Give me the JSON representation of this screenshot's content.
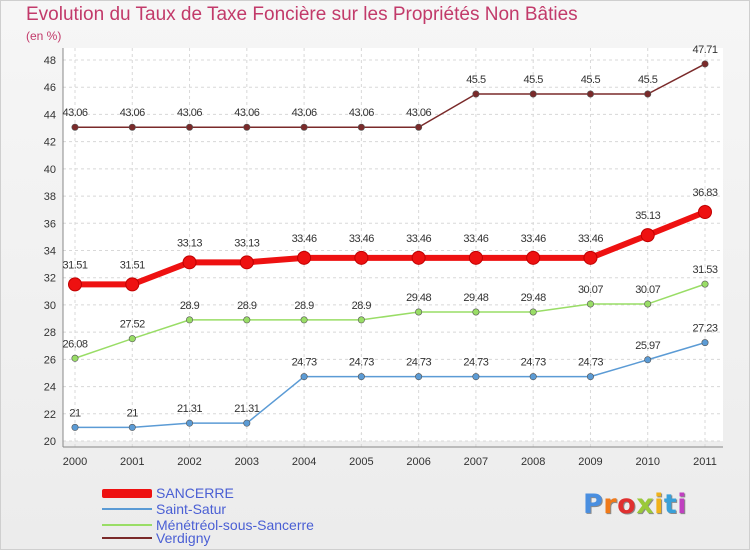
{
  "header": {
    "title": "Evolution du Taux de Taxe Foncière sur les Propriétés Non Bâties",
    "unit": "(en %)"
  },
  "logo": {
    "text": "Proxiti",
    "colors": [
      "#4a8fe0",
      "#f07a1a",
      "#e03030",
      "#9ac93a",
      "#f0b21a",
      "#3aa0d8",
      "#c040c0"
    ]
  },
  "chart_data": {
    "type": "line",
    "title": "Evolution du Taux de Taxe Foncière sur les Propriétés Non Bâties",
    "ylabel": "(en %)",
    "xlabel": "",
    "categories": [
      "2000",
      "2001",
      "2002",
      "2003",
      "2004",
      "2005",
      "2006",
      "2007",
      "2008",
      "2009",
      "2010",
      "2011"
    ],
    "ylim": [
      20,
      48
    ],
    "yticks": [
      20,
      22,
      24,
      26,
      28,
      30,
      32,
      34,
      36,
      38,
      40,
      42,
      44,
      46,
      48
    ],
    "grid": true,
    "series": [
      {
        "name": "SANCERRE",
        "color": "#ee1111",
        "values": [
          31.51,
          31.51,
          33.13,
          33.13,
          33.46,
          33.46,
          33.46,
          33.46,
          33.46,
          33.46,
          35.13,
          36.83
        ],
        "labels": [
          "31.51",
          "31.51",
          "33.13",
          "33.13",
          "33.46",
          "33.46",
          "33.46",
          "33.46",
          "33.46",
          "33.46",
          "35.13",
          "36.83"
        ]
      },
      {
        "name": "Saint-Satur",
        "color": "#5b9bd5",
        "values": [
          21,
          21,
          21.31,
          21.31,
          24.73,
          24.73,
          24.73,
          24.73,
          24.73,
          24.73,
          25.97,
          27.23
        ],
        "labels": [
          "21",
          "21",
          "21.31",
          "21.31",
          "24.73",
          "24.73",
          "24.73",
          "24.73",
          "24.73",
          "24.73",
          "25.97",
          "27.23"
        ]
      },
      {
        "name": "Ménétréol-sous-Sancerre",
        "color": "#99dd66",
        "values": [
          26.08,
          27.52,
          28.9,
          28.9,
          28.9,
          28.9,
          29.48,
          29.48,
          29.48,
          30.07,
          30.07,
          31.53
        ],
        "labels": [
          "26.08",
          "27.52",
          "28.9",
          "28.9",
          "28.9",
          "28.9",
          "29.48",
          "29.48",
          "29.48",
          "30.07",
          "30.07",
          "31.53"
        ]
      },
      {
        "name": "Verdigny",
        "color": "#7a2a2a",
        "values": [
          43.06,
          43.06,
          43.06,
          43.06,
          43.06,
          43.06,
          43.06,
          45.5,
          45.5,
          45.5,
          45.5,
          47.71
        ],
        "labels": [
          "43.06",
          "43.06",
          "43.06",
          "43.06",
          "43.06",
          "43.06",
          "43.06",
          "45.5",
          "45.5",
          "45.5",
          "45.5",
          "47.71"
        ]
      }
    ]
  }
}
